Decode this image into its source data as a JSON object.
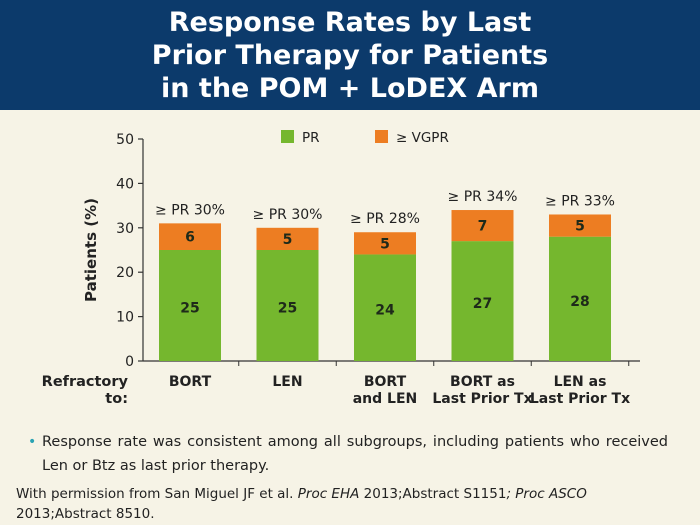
{
  "title": {
    "line1": "Response Rates by Last",
    "line2": "Prior Therapy for Patients",
    "line3": "in the POM + LoDEX Arm"
  },
  "colors": {
    "title_bg": "#0c3a6b",
    "background": "#f6f3e6",
    "pr": "#75b72e",
    "vgpr": "#ed7d22"
  },
  "chart_data": {
    "type": "bar",
    "stacked": true,
    "categories": [
      "BORT",
      "LEN",
      "BORT\nand LEN",
      "BORT as\nLast Prior Tx",
      "LEN as\nLast Prior Tx"
    ],
    "category_lines": [
      [
        "BORT"
      ],
      [
        "LEN"
      ],
      [
        "BORT",
        "and LEN"
      ],
      [
        "BORT as",
        "Last Prior Tx"
      ],
      [
        "LEN as",
        "Last Prior Tx"
      ]
    ],
    "series": [
      {
        "name": "PR",
        "values": [
          25,
          25,
          24,
          27,
          28
        ]
      },
      {
        "name": "≥ VGPR",
        "values": [
          6,
          5,
          5,
          7,
          5
        ]
      }
    ],
    "totals_labels": [
      "≥ PR 30%",
      "≥ PR 30%",
      "≥ PR 28%",
      "≥ PR 34%",
      "≥ PR 33%"
    ],
    "ylabel": "Patients (%)",
    "xlabel_lines": [
      "Refractory",
      "to:"
    ],
    "yticks": [
      0,
      10,
      20,
      30,
      40,
      50
    ],
    "ylim": [
      0,
      50
    ],
    "legend_position": "top",
    "grid": false
  },
  "bullet": "Response rate was consistent among all subgroups, including patients who received Len or Btz as last prior therapy.",
  "citation": {
    "part1": "With permission from San Miguel JF et al. ",
    "ital1": "Proc EHA",
    "part2": " 2013;Abstract S1151",
    "ital2": "; Proc ASCO",
    "part3": " 2013;Abstract 8510."
  }
}
